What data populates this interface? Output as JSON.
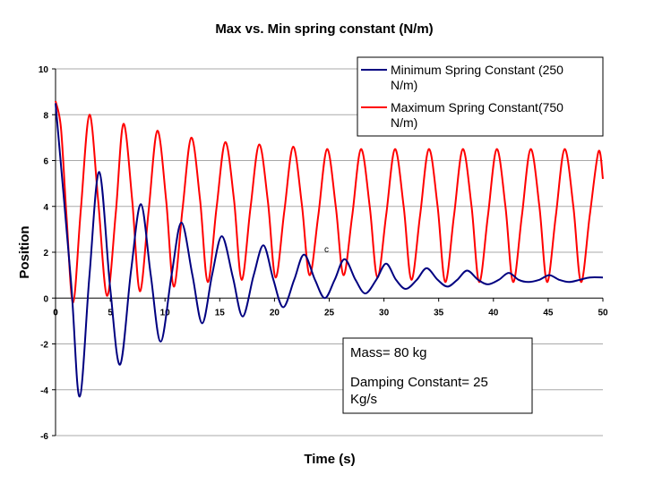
{
  "chart_data": {
    "type": "line",
    "title": "Max vs. Min spring constant (N/m)",
    "xlabel": "Time (s)",
    "ylabel": "Position",
    "xlim": [
      0,
      50
    ],
    "ylim": [
      -6,
      10
    ],
    "x_ticks": [
      "0",
      "5",
      "10",
      "15",
      "20",
      "25",
      "30",
      "35",
      "40",
      "45",
      "50"
    ],
    "y_ticks": [
      "10",
      "8",
      "6",
      "4",
      "2",
      "0",
      "-2",
      "-4",
      "-6"
    ],
    "grid": "horizontal",
    "legend_position": "top-right",
    "series": [
      {
        "name": "Minimum Spring Constant (250 N/m)",
        "legend_lines": [
          "Minimum Spring Constant (250",
          "N/m)"
        ],
        "color": "#000080",
        "points": [
          [
            0,
            8.5
          ],
          [
            1.4,
            0.8
          ],
          [
            2.2,
            -4.3
          ],
          [
            3.1,
            1.0
          ],
          [
            4.0,
            5.5
          ],
          [
            5.0,
            0.4
          ],
          [
            5.9,
            -2.9
          ],
          [
            6.9,
            1.2
          ],
          [
            7.8,
            4.1
          ],
          [
            8.7,
            1.0
          ],
          [
            9.6,
            -1.9
          ],
          [
            10.6,
            1.0
          ],
          [
            11.5,
            3.3
          ],
          [
            12.5,
            1.0
          ],
          [
            13.4,
            -1.1
          ],
          [
            14.3,
            1.0
          ],
          [
            15.2,
            2.7
          ],
          [
            16.2,
            0.9
          ],
          [
            17.1,
            -0.8
          ],
          [
            18.1,
            1.0
          ],
          [
            19.0,
            2.3
          ],
          [
            19.9,
            0.8
          ],
          [
            20.8,
            -0.4
          ],
          [
            21.8,
            0.8
          ],
          [
            22.7,
            1.9
          ],
          [
            23.7,
            0.8
          ],
          [
            24.6,
            0.0
          ],
          [
            25.5,
            0.8
          ],
          [
            26.4,
            1.7
          ],
          [
            27.4,
            0.8
          ],
          [
            28.3,
            0.2
          ],
          [
            29.3,
            0.8
          ],
          [
            30.2,
            1.5
          ],
          [
            31.1,
            0.8
          ],
          [
            32.0,
            0.4
          ],
          [
            33.0,
            0.8
          ],
          [
            33.9,
            1.3
          ],
          [
            34.9,
            0.8
          ],
          [
            35.8,
            0.5
          ],
          [
            36.7,
            0.8
          ],
          [
            37.6,
            1.2
          ],
          [
            38.6,
            0.8
          ],
          [
            39.5,
            0.6
          ],
          [
            40.5,
            0.8
          ],
          [
            41.4,
            1.1
          ],
          [
            42.3,
            0.8
          ],
          [
            43.2,
            0.7
          ],
          [
            44.2,
            0.8
          ],
          [
            45.1,
            1.0
          ],
          [
            46.0,
            0.8
          ],
          [
            46.9,
            0.7
          ],
          [
            47.9,
            0.8
          ],
          [
            48.8,
            0.9
          ],
          [
            50,
            0.9
          ]
        ]
      },
      {
        "name": "Maximum Spring Constant(750 N/m)",
        "legend_lines": [
          "Maximum Spring Constant(750",
          "N/m)"
        ],
        "color": "#ff0000",
        "points": [
          [
            0,
            8.6
          ],
          [
            0.5,
            7.4
          ],
          [
            1.0,
            3.6
          ],
          [
            1.6,
            -0.2
          ],
          [
            2.3,
            3.8
          ],
          [
            3.1,
            8.0
          ],
          [
            3.9,
            4.2
          ],
          [
            4.7,
            0.1
          ],
          [
            5.5,
            3.7
          ],
          [
            6.2,
            7.6
          ],
          [
            7.0,
            4.3
          ],
          [
            7.7,
            0.3
          ],
          [
            8.5,
            3.8
          ],
          [
            9.3,
            7.3
          ],
          [
            10.1,
            4.3
          ],
          [
            10.8,
            0.5
          ],
          [
            11.6,
            3.9
          ],
          [
            12.4,
            7.0
          ],
          [
            13.2,
            4.3
          ],
          [
            13.9,
            0.7
          ],
          [
            14.7,
            3.9
          ],
          [
            15.5,
            6.8
          ],
          [
            16.3,
            4.3
          ],
          [
            17.0,
            0.8
          ],
          [
            17.8,
            3.9
          ],
          [
            18.6,
            6.7
          ],
          [
            19.4,
            4.2
          ],
          [
            20.1,
            0.9
          ],
          [
            20.9,
            3.8
          ],
          [
            21.7,
            6.6
          ],
          [
            22.5,
            4.1
          ],
          [
            23.2,
            1.0
          ],
          [
            24.0,
            3.6
          ],
          [
            24.8,
            6.5
          ],
          [
            25.6,
            4.0
          ],
          [
            26.3,
            1.0
          ],
          [
            27.1,
            3.6
          ],
          [
            27.9,
            6.5
          ],
          [
            28.7,
            4.0
          ],
          [
            29.4,
            0.9
          ],
          [
            30.2,
            3.6
          ],
          [
            31.0,
            6.5
          ],
          [
            31.8,
            4.0
          ],
          [
            32.5,
            0.8
          ],
          [
            33.3,
            3.6
          ],
          [
            34.1,
            6.5
          ],
          [
            34.9,
            4.0
          ],
          [
            35.6,
            0.7
          ],
          [
            36.4,
            3.6
          ],
          [
            37.2,
            6.5
          ],
          [
            38.0,
            4.0
          ],
          [
            38.7,
            0.7
          ],
          [
            39.5,
            3.6
          ],
          [
            40.3,
            6.5
          ],
          [
            41.1,
            4.0
          ],
          [
            41.8,
            0.7
          ],
          [
            42.6,
            3.6
          ],
          [
            43.4,
            6.5
          ],
          [
            44.2,
            4.0
          ],
          [
            44.9,
            0.7
          ],
          [
            45.7,
            3.6
          ],
          [
            46.5,
            6.5
          ],
          [
            47.3,
            4.0
          ],
          [
            48.0,
            0.7
          ],
          [
            48.8,
            3.6
          ],
          [
            49.6,
            6.4
          ],
          [
            50,
            5.2
          ]
        ]
      }
    ],
    "annotations": {
      "box_lines": [
        "Mass= 80 kg",
        "Damping Constant= 25",
        "Kg/s"
      ],
      "stray_label": "c"
    }
  }
}
